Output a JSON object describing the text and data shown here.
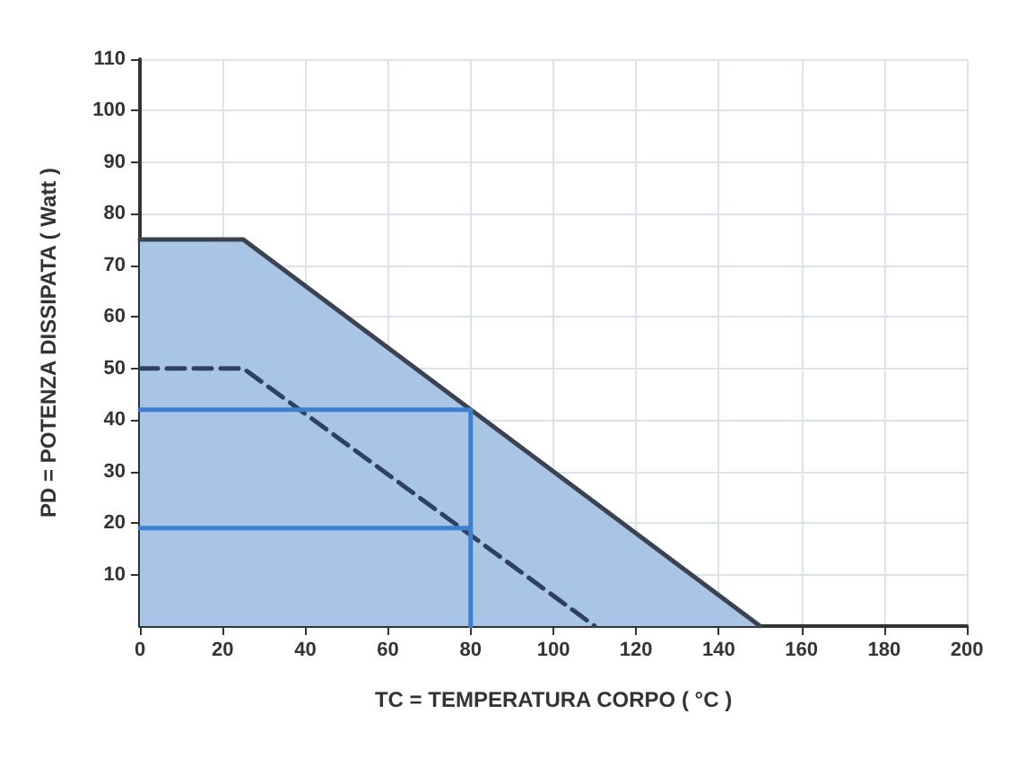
{
  "chart_data": {
    "type": "line",
    "xlabel": "TC = TEMPERATURA CORPO ( °C )",
    "ylabel": "PD = POTENZA DISSIPATA ( Watt )",
    "xlim": [
      0,
      200
    ],
    "xticks": [
      0,
      20,
      40,
      60,
      80,
      100,
      120,
      140,
      160,
      180,
      200
    ],
    "ylim": [
      0,
      110
    ],
    "yticks": [
      10,
      20,
      30,
      40,
      50,
      60,
      70,
      80,
      90,
      100,
      110
    ],
    "grid": true,
    "marker": "none",
    "series": [
      {
        "type": "area",
        "color": "#3c4350",
        "line_style": "solid",
        "x": [
          0,
          25,
          150
        ],
        "values": [
          75,
          75,
          0
        ]
      },
      {
        "type": "line",
        "color": "#2f4060",
        "line_style": "dashed",
        "x": [
          0,
          25,
          110
        ],
        "values": [
          50,
          50,
          0
        ]
      },
      {
        "type": "line",
        "color": "#3f7fd0",
        "line_style": "solid",
        "x": [
          0,
          80,
          80
        ],
        "values": [
          42,
          42,
          0
        ]
      },
      {
        "type": "line",
        "color": "#3f7fd0",
        "line_style": "solid",
        "x": [
          0,
          80
        ],
        "values": [
          19,
          19
        ]
      }
    ]
  }
}
